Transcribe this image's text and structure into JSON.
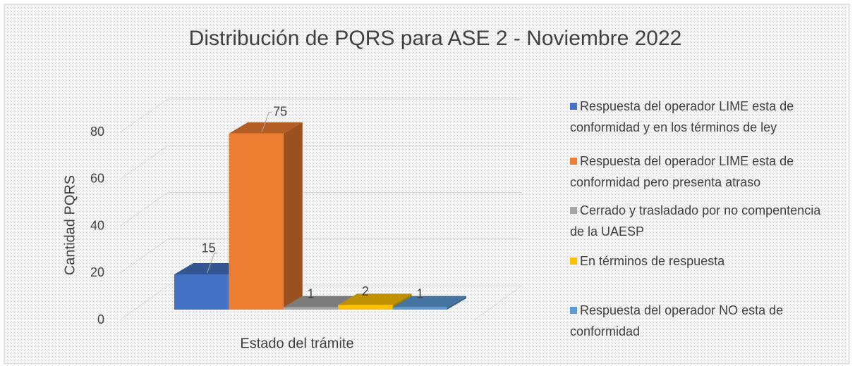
{
  "chart_data": {
    "type": "bar3d",
    "title": "Distribución de PQRS para ASE 2 - Noviembre 2022",
    "y_label": "Cantidad PQRS",
    "categories": [
      "Estado del trámite"
    ],
    "series": [
      {
        "name": "Respuesta del operador LIME esta de conformidad y en los términos de ley",
        "color": "#4472c4",
        "values": [
          15
        ]
      },
      {
        "name": "Respuesta del operador LIME esta de conformidad pero presenta atraso",
        "color": "#ed7d31",
        "values": [
          75
        ]
      },
      {
        "name": "Cerrado y trasladado por no compentencia de la UAESP",
        "color": "#a5a5a5",
        "values": [
          1
        ]
      },
      {
        "name": "En términos de respuesta",
        "color": "#ffc000",
        "values": [
          2
        ]
      },
      {
        "name": "Respuesta del operador NO esta de conformidad",
        "color": "#5b9bd5",
        "values": [
          1
        ]
      }
    ],
    "ylim": [
      0,
      80
    ],
    "yticks": [
      0,
      20,
      40,
      60,
      80
    ],
    "grid": true,
    "legend": "right"
  }
}
